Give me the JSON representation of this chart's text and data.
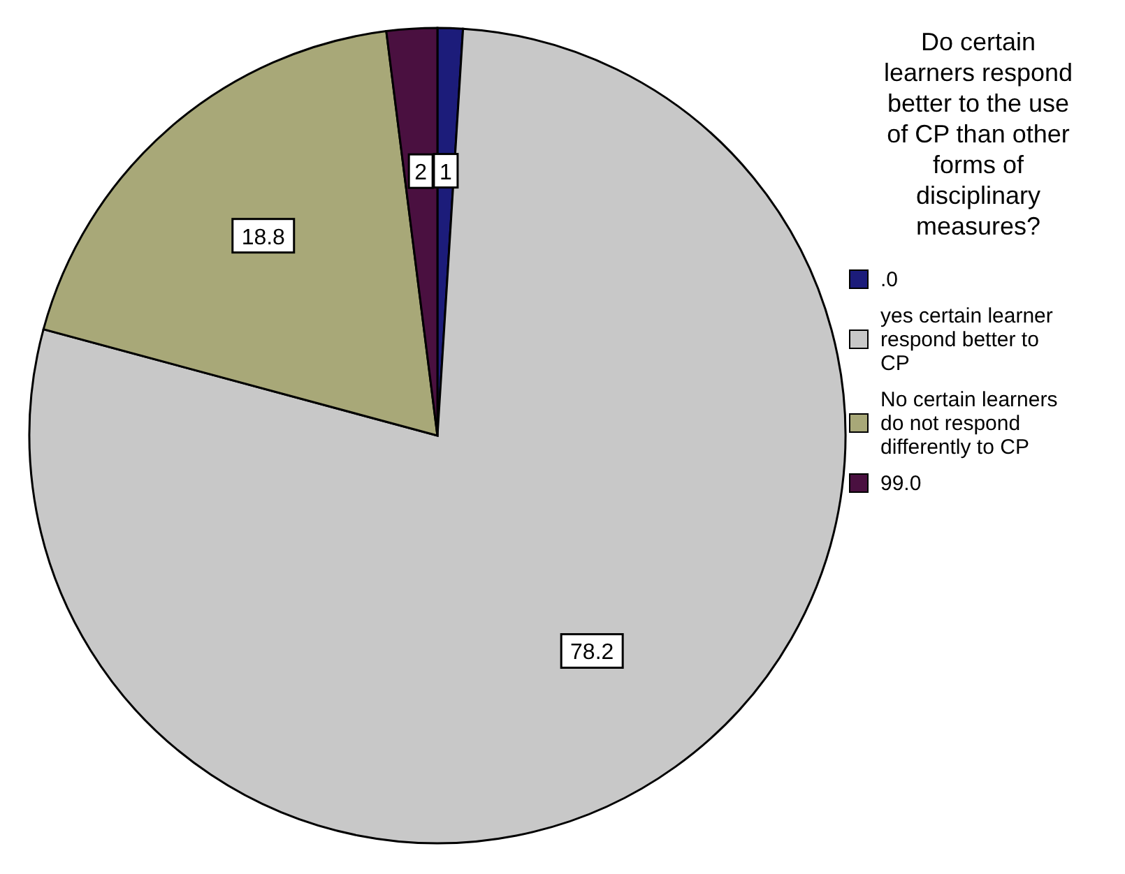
{
  "chart_data": {
    "type": "pie",
    "legend_title": "Do certain learners respond better to the use of CP than other forms of disciplinary measures?",
    "categories": [
      ".0",
      "yes certain learner respond better to CP",
      "No certain learners do not respond differently to CP",
      "99.0"
    ],
    "values": [
      1,
      78.2,
      18.8,
      2
    ],
    "value_labels": [
      "1",
      "78.2",
      "18.8",
      "2"
    ],
    "colors": [
      "#1c1c7a",
      "#c8c8c8",
      "#a8a878",
      "#4a1040"
    ],
    "legend": "right"
  }
}
